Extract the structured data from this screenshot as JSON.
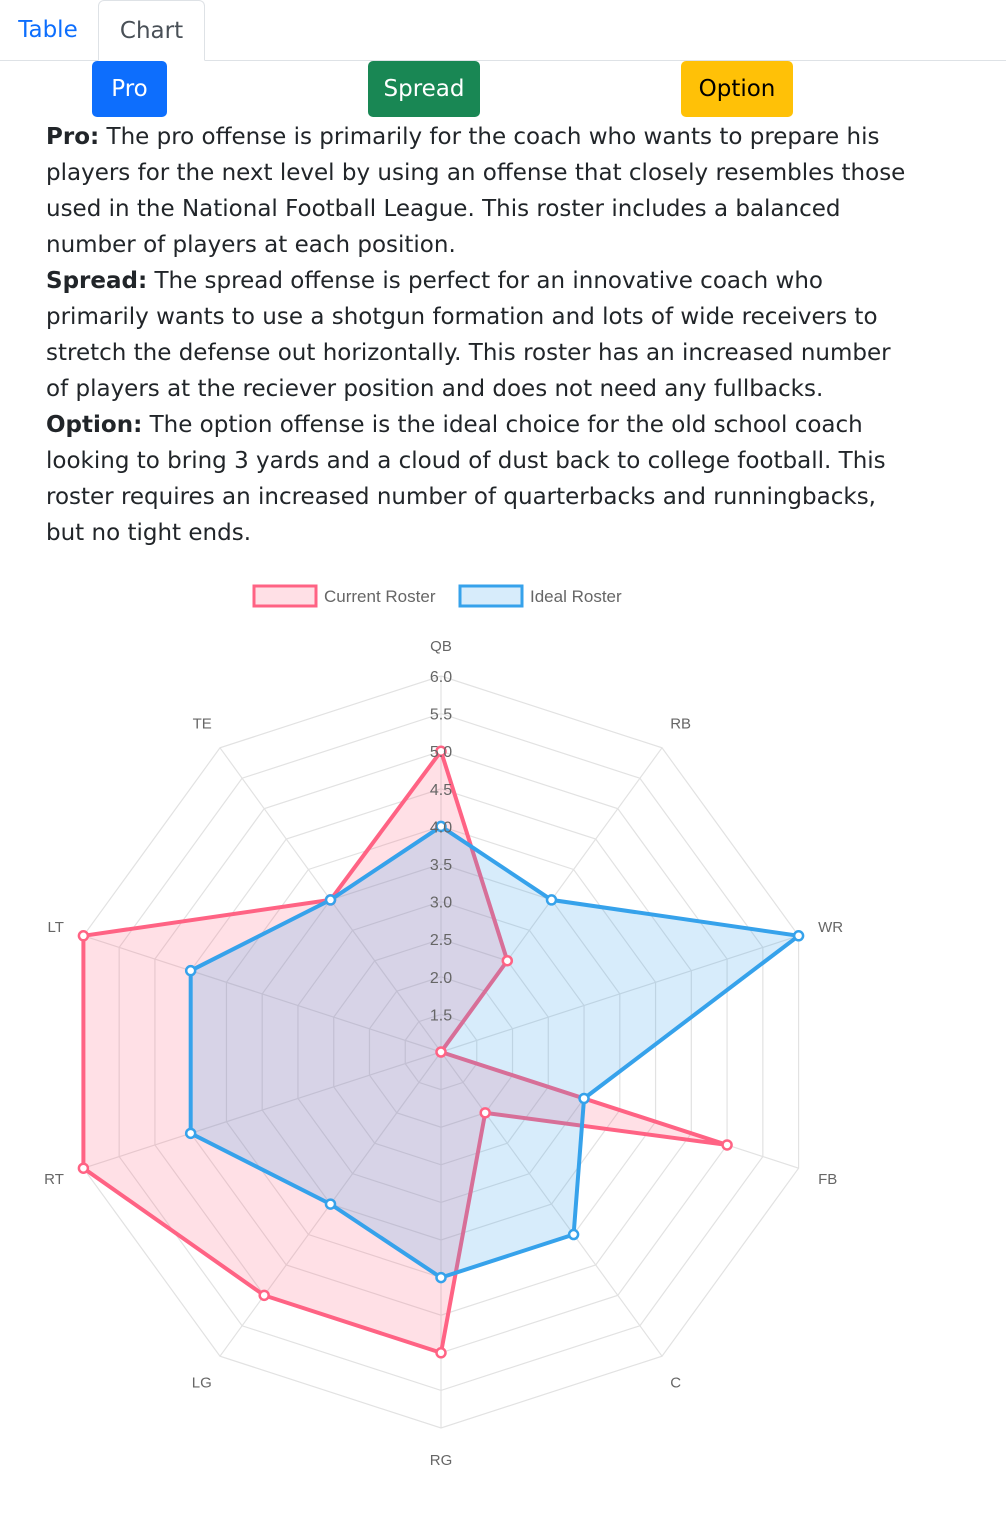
{
  "tabs": [
    {
      "label": "Table",
      "active": false
    },
    {
      "label": "Chart",
      "active": true
    }
  ],
  "offense_buttons": {
    "pro": "Pro",
    "spread": "Spread",
    "option": "Option"
  },
  "descriptions": [
    {
      "term": "Pro:",
      "text": " The pro offense is primarily for the coach who wants to prepare his players for the next level by using an offense that closely resembles those used in the National Football League. This roster includes a balanced number of players at each position."
    },
    {
      "term": "Spread:",
      "text": " The spread offense is perfect for an innovative coach who primarily wants to use a shotgun formation and lots of wide receivers to stretch the defense out horizontally. This roster has an increased number of players at the reciever position and does not need any fullbacks."
    },
    {
      "term": "Option:",
      "text": " The option offense is the ideal choice for the old school coach looking to bring 3 yards and a cloud of dust back to college football. This roster requires an increased number of quarterbacks and runningbacks, but no tight ends."
    }
  ],
  "colors": {
    "current": "#ff6384",
    "current_fill": "rgba(255,99,132,0.2)",
    "ideal": "#36a2eb",
    "ideal_fill": "rgba(54,162,235,0.2)",
    "grid": "#e2e2e2",
    "label": "#666666"
  },
  "chart_data": {
    "type": "radar",
    "categories": [
      "QB",
      "RB",
      "WR",
      "FB",
      "C",
      "RG",
      "LG",
      "RT",
      "LT",
      "TE"
    ],
    "series": [
      {
        "name": "Current Roster",
        "values": [
          5,
          2.5,
          1,
          5,
          2,
          5,
          5,
          6,
          6,
          3.5
        ]
      },
      {
        "name": "Ideal Roster",
        "values": [
          4,
          3.5,
          6,
          3,
          4,
          4,
          3.5,
          4.5,
          4.5,
          3.5
        ]
      }
    ],
    "r_ticks": [
      "1.5",
      "2.0",
      "2.5",
      "3.0",
      "3.5",
      "4.0",
      "4.5",
      "5.0",
      "5.5",
      "6.0"
    ],
    "rlim": [
      1,
      6
    ],
    "grid": true,
    "legend_position": "top"
  }
}
